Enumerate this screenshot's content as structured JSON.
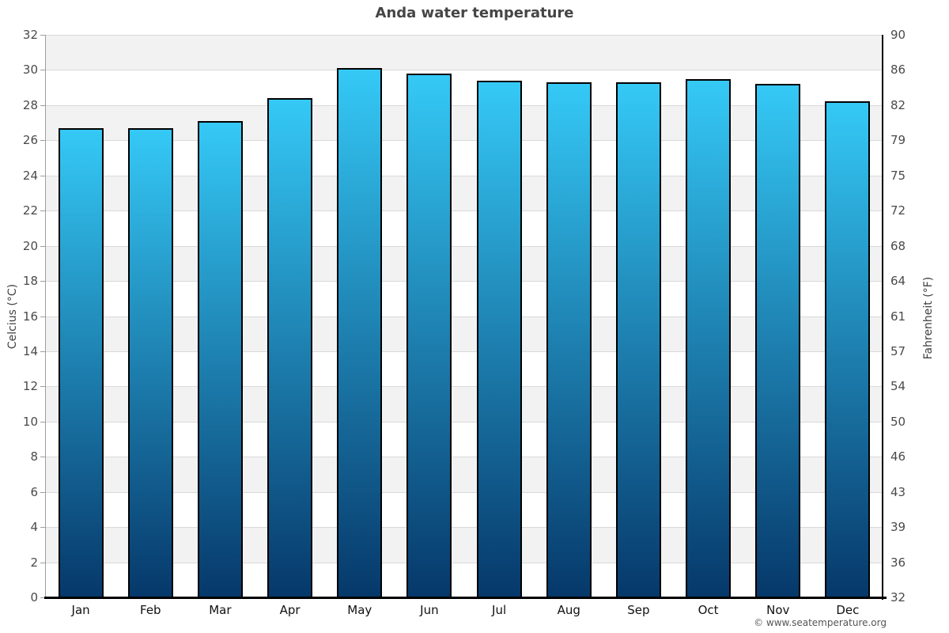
{
  "chart_data": {
    "type": "bar",
    "title": "Anda water temperature",
    "categories": [
      "Jan",
      "Feb",
      "Mar",
      "Apr",
      "May",
      "Jun",
      "Jul",
      "Aug",
      "Sep",
      "Oct",
      "Nov",
      "Dec"
    ],
    "values": [
      26.7,
      26.7,
      27.1,
      28.4,
      30.1,
      29.8,
      29.4,
      29.3,
      29.3,
      29.5,
      29.2,
      28.2
    ],
    "series_unit": "°C",
    "xlabel": "",
    "ylabel_left": "Celcius (°C)",
    "ylabel_right": "Fahrenheit (°F)",
    "ylim_celsius": [
      0,
      32
    ],
    "ylim_fahrenheit": [
      32,
      90
    ],
    "celsius_ticks": [
      32,
      30,
      28,
      26,
      24,
      22,
      20,
      18,
      16,
      14,
      12,
      10,
      8,
      6,
      4,
      2,
      0
    ],
    "fahrenheit_ticks": [
      90,
      86,
      82,
      79,
      75,
      72,
      68,
      64,
      61,
      57,
      54,
      50,
      46,
      43,
      39,
      36,
      32
    ],
    "grid": "horizontal gridlines every 2°C with alternating shaded bands",
    "legend": "none"
  },
  "footer": {
    "copyright": "© www.seatemperature.org"
  },
  "colors": {
    "bar_top": "#35c9f6",
    "bar_bottom": "#06386a",
    "bar_border": "#000000",
    "band_shade": "#f2f2f2",
    "band_plain": "#ffffff",
    "gridline": "#d9d9d9",
    "title_text": "#454545",
    "tick_text": "#4a4a4a",
    "month_text": "#111111",
    "axis_title_text": "#3f3f3f",
    "copyright_text": "#555555",
    "minor_axis_line": "#9e9e9e",
    "strong_axis_line": "#000000"
  }
}
